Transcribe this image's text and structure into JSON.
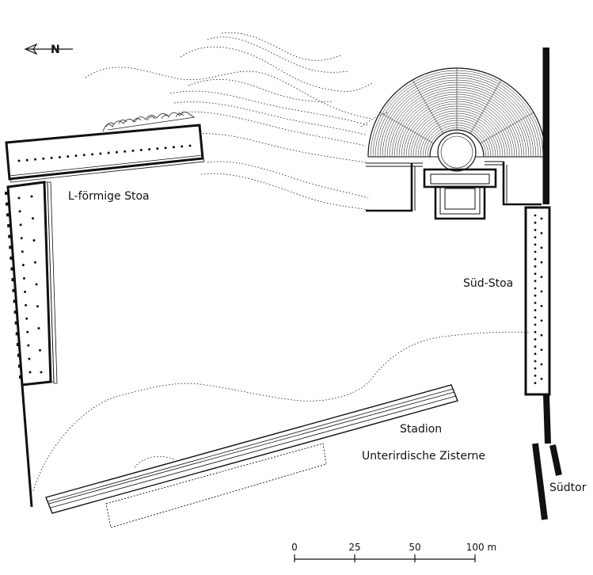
{
  "labels": {
    "l_stoa": "L-förmige Stoa",
    "sued_stoa": "Süd-Stoa",
    "stadion": "Stadion",
    "zisterne": "Unterirdische Zisterne",
    "suedtor": "Südtor"
  },
  "north_arrow": {
    "letter": "N"
  },
  "scale_bar": {
    "ticks": [
      "0",
      "25",
      "50",
      "100 m"
    ]
  }
}
